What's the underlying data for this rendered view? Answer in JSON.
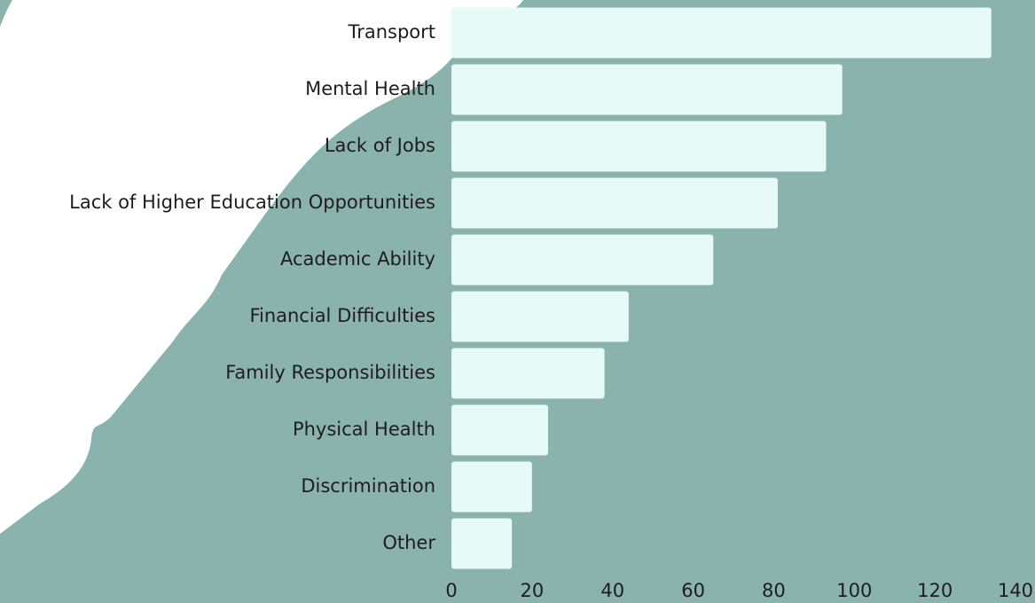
{
  "chart_data": {
    "type": "bar",
    "orientation": "horizontal",
    "categories": [
      "Transport",
      "Mental Health",
      "Lack of Jobs",
      "Lack of Higher Education Opportunities",
      "Academic Ability",
      "Financial Difficulties",
      "Family Responsibilities",
      "Physical Health",
      "Discrimination",
      "Other"
    ],
    "values": [
      134,
      97,
      93,
      81,
      65,
      44,
      38,
      24,
      20,
      15
    ],
    "color": "#e6fbf6",
    "xlim": [
      0,
      140
    ],
    "xticks": [
      0,
      20,
      40,
      60,
      80,
      100,
      120,
      140
    ],
    "grid": false
  }
}
